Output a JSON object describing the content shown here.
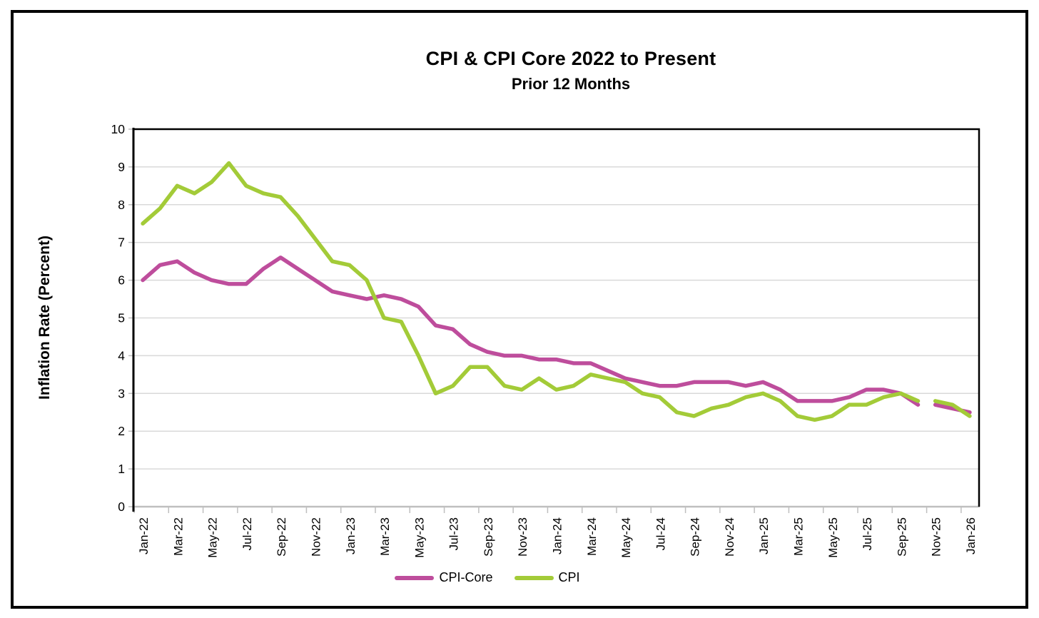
{
  "chart_data": {
    "type": "line",
    "title": "CPI & CPI Core  2022 to Present",
    "subtitle": "Prior 12 Months",
    "xlabel": "",
    "ylabel": "Inflation Rate (Percent)",
    "ylim": [
      0,
      10
    ],
    "ytick_step": 1,
    "y_tick_labels": [
      "0",
      "1",
      "2",
      "3",
      "4",
      "5",
      "6",
      "7",
      "8",
      "9",
      "10"
    ],
    "x_tick_labels": [
      "Jan-22",
      "Mar-22",
      "May-22",
      "Jul-22",
      "Sep-22",
      "Nov-22",
      "Jan-23",
      "Mar-23",
      "May-23",
      "Jul-23",
      "Sep-23",
      "Nov-23",
      "Jan-24",
      "Mar-24",
      "May-24",
      "Jul-24",
      "Sep-24",
      "Nov-24",
      "Jan-25",
      "Mar-25",
      "May-25",
      "Jul-25",
      "Sep-25",
      "Nov-25",
      "Jan-26"
    ],
    "months": [
      "Jan-22",
      "Feb-22",
      "Mar-22",
      "Apr-22",
      "May-22",
      "Jun-22",
      "Jul-22",
      "Aug-22",
      "Sep-22",
      "Oct-22",
      "Nov-22",
      "Dec-22",
      "Jan-23",
      "Feb-23",
      "Mar-23",
      "Apr-23",
      "May-23",
      "Jun-23",
      "Jul-23",
      "Aug-23",
      "Sep-23",
      "Oct-23",
      "Nov-23",
      "Dec-23",
      "Jan-24",
      "Feb-24",
      "Mar-24",
      "Apr-24",
      "May-24",
      "Jun-24",
      "Jul-24",
      "Aug-24",
      "Sep-24",
      "Oct-24",
      "Nov-24",
      "Dec-24",
      "Jan-25",
      "Feb-25",
      "Mar-25",
      "Apr-25",
      "May-25",
      "Jun-25",
      "Jul-25",
      "Aug-25",
      "Sep-25",
      "Oct-25",
      "Nov-25",
      "Dec-25",
      "Jan-26"
    ],
    "grid": "horizontal",
    "legend_position": "bottom",
    "line_gap_between": [
      "Oct-25",
      "Nov-25"
    ],
    "series": [
      {
        "name": "CPI-Core",
        "color": "#BE4D9C",
        "values": [
          6.0,
          6.4,
          6.5,
          6.2,
          6.0,
          5.9,
          5.9,
          6.3,
          6.6,
          6.3,
          6.0,
          5.7,
          5.6,
          5.5,
          5.6,
          5.5,
          5.3,
          4.8,
          4.7,
          4.3,
          4.1,
          4.0,
          4.0,
          3.9,
          3.9,
          3.8,
          3.8,
          3.6,
          3.4,
          3.3,
          3.2,
          3.2,
          3.3,
          3.3,
          3.3,
          3.2,
          3.3,
          3.1,
          2.8,
          2.8,
          2.8,
          2.9,
          3.1,
          3.1,
          3.0,
          2.7
        ],
        "projected_values": [
          2.7,
          2.6,
          2.5
        ]
      },
      {
        "name": "CPI",
        "color": "#A3CB38",
        "values": [
          7.5,
          7.9,
          8.5,
          8.3,
          8.6,
          9.1,
          8.5,
          8.3,
          8.2,
          7.7,
          7.1,
          6.5,
          6.4,
          6.0,
          5.0,
          4.9,
          4.0,
          3.0,
          3.2,
          3.7,
          3.7,
          3.2,
          3.1,
          3.4,
          3.1,
          3.2,
          3.5,
          3.4,
          3.3,
          3.0,
          2.9,
          2.5,
          2.4,
          2.6,
          2.7,
          2.9,
          3.0,
          2.8,
          2.4,
          2.3,
          2.4,
          2.7,
          2.7,
          2.9,
          3.0,
          2.8
        ],
        "projected_values": [
          2.8,
          2.7,
          2.4
        ]
      }
    ],
    "axis_colors": {
      "plot_border": "#000000",
      "bottom_axis": "#BFBFBF",
      "gridline": "#D9D9D9",
      "tick": "#BFBFBF"
    }
  }
}
